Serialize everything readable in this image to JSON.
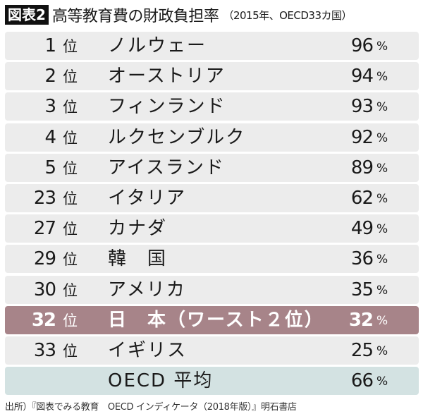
{
  "title": {
    "badge": "図表2",
    "main": "高等教育費の財政負担率",
    "sub": "（2015年、OECD33カ国）"
  },
  "rank_unit": "位",
  "value_unit": "%",
  "rows": [
    {
      "rank": "1",
      "name": "ノルウェー",
      "value": "96"
    },
    {
      "rank": "2",
      "name": "オーストリア",
      "value": "94"
    },
    {
      "rank": "3",
      "name": "フィンランド",
      "value": "93"
    },
    {
      "rank": "4",
      "name": "ルクセンブルク",
      "value": "92"
    },
    {
      "rank": "5",
      "name": "アイスランド",
      "value": "89"
    },
    {
      "rank": "23",
      "name": "イタリア",
      "value": "62"
    },
    {
      "rank": "27",
      "name": "カナダ",
      "value": "49"
    },
    {
      "rank": "29",
      "name": "韓　国",
      "value": "36"
    },
    {
      "rank": "30",
      "name": "アメリカ",
      "value": "35"
    },
    {
      "rank": "32",
      "name": "日　本（ワースト２位）",
      "value": "32",
      "highlight": true
    },
    {
      "rank": "33",
      "name": "イギリス",
      "value": "25"
    },
    {
      "rank": "",
      "name": "OECD 平均",
      "value": "66",
      "average": true
    }
  ],
  "colors": {
    "row": "#ececec",
    "highlight": "#a78489",
    "average": "#d3e2e2"
  },
  "source": "出所）『図表でみる教育　OECD インディケータ（2018年版）』明石書店"
}
